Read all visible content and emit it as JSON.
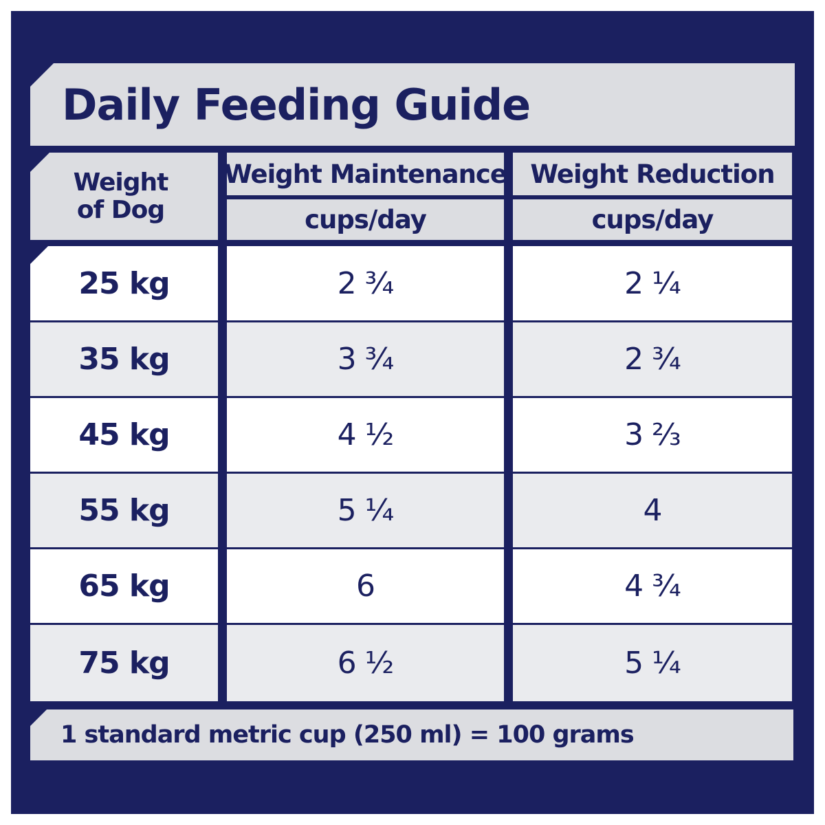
{
  "title": "Daily Feeding Guide",
  "header": {
    "weight_line1": "Weight",
    "weight_line2": "of Dog",
    "maintenance_label": "Weight Maintenance",
    "reduction_label": "Weight Reduction",
    "unit": "cups/day"
  },
  "rows": [
    {
      "weight": "25 kg",
      "maintenance": "2 ¾",
      "reduction": "2 ¼"
    },
    {
      "weight": "35 kg",
      "maintenance": "3 ¾",
      "reduction": "2 ¾"
    },
    {
      "weight": "45 kg",
      "maintenance": "4 ½",
      "reduction": "3 ⅔"
    },
    {
      "weight": "55 kg",
      "maintenance": "5 ¼",
      "reduction": "4"
    },
    {
      "weight": "65 kg",
      "maintenance": "6",
      "reduction": "4 ¾"
    },
    {
      "weight": "75 kg",
      "maintenance": "6 ½",
      "reduction": "5 ¼"
    }
  ],
  "footer_note": "1 standard metric cup (250 ml) = 100 grams",
  "colors": {
    "navy": "#1b2060",
    "light_grey": "#dcdde1",
    "row_grey": "#eaebee",
    "white": "#ffffff"
  }
}
